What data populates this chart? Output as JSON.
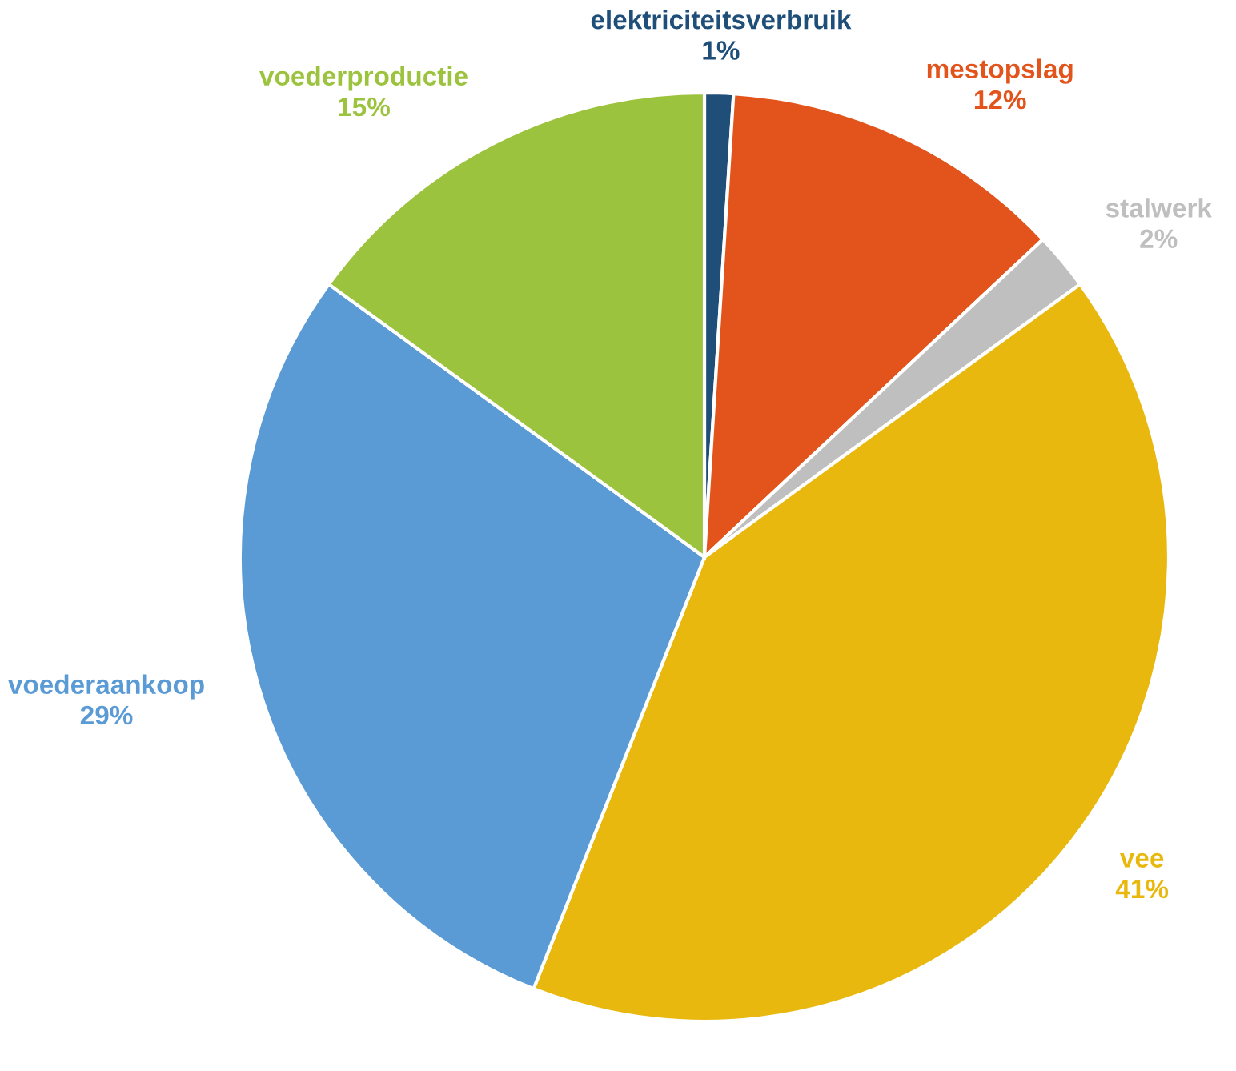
{
  "chart_data": {
    "type": "pie",
    "categories": [
      "elektriciteitsverbruik",
      "mestopslag",
      "stalwerk",
      "vee",
      "voederaankoop",
      "voederproductie"
    ],
    "values": [
      1,
      12,
      2,
      41,
      29,
      15
    ],
    "colors": [
      "#1f4e79",
      "#e2541b",
      "#bfbfbf",
      "#e9b80e",
      "#5b9bd5",
      "#9cc33e"
    ],
    "value_labels": [
      "1%",
      "12%",
      "2%",
      "41%",
      "29%",
      "15%"
    ]
  }
}
